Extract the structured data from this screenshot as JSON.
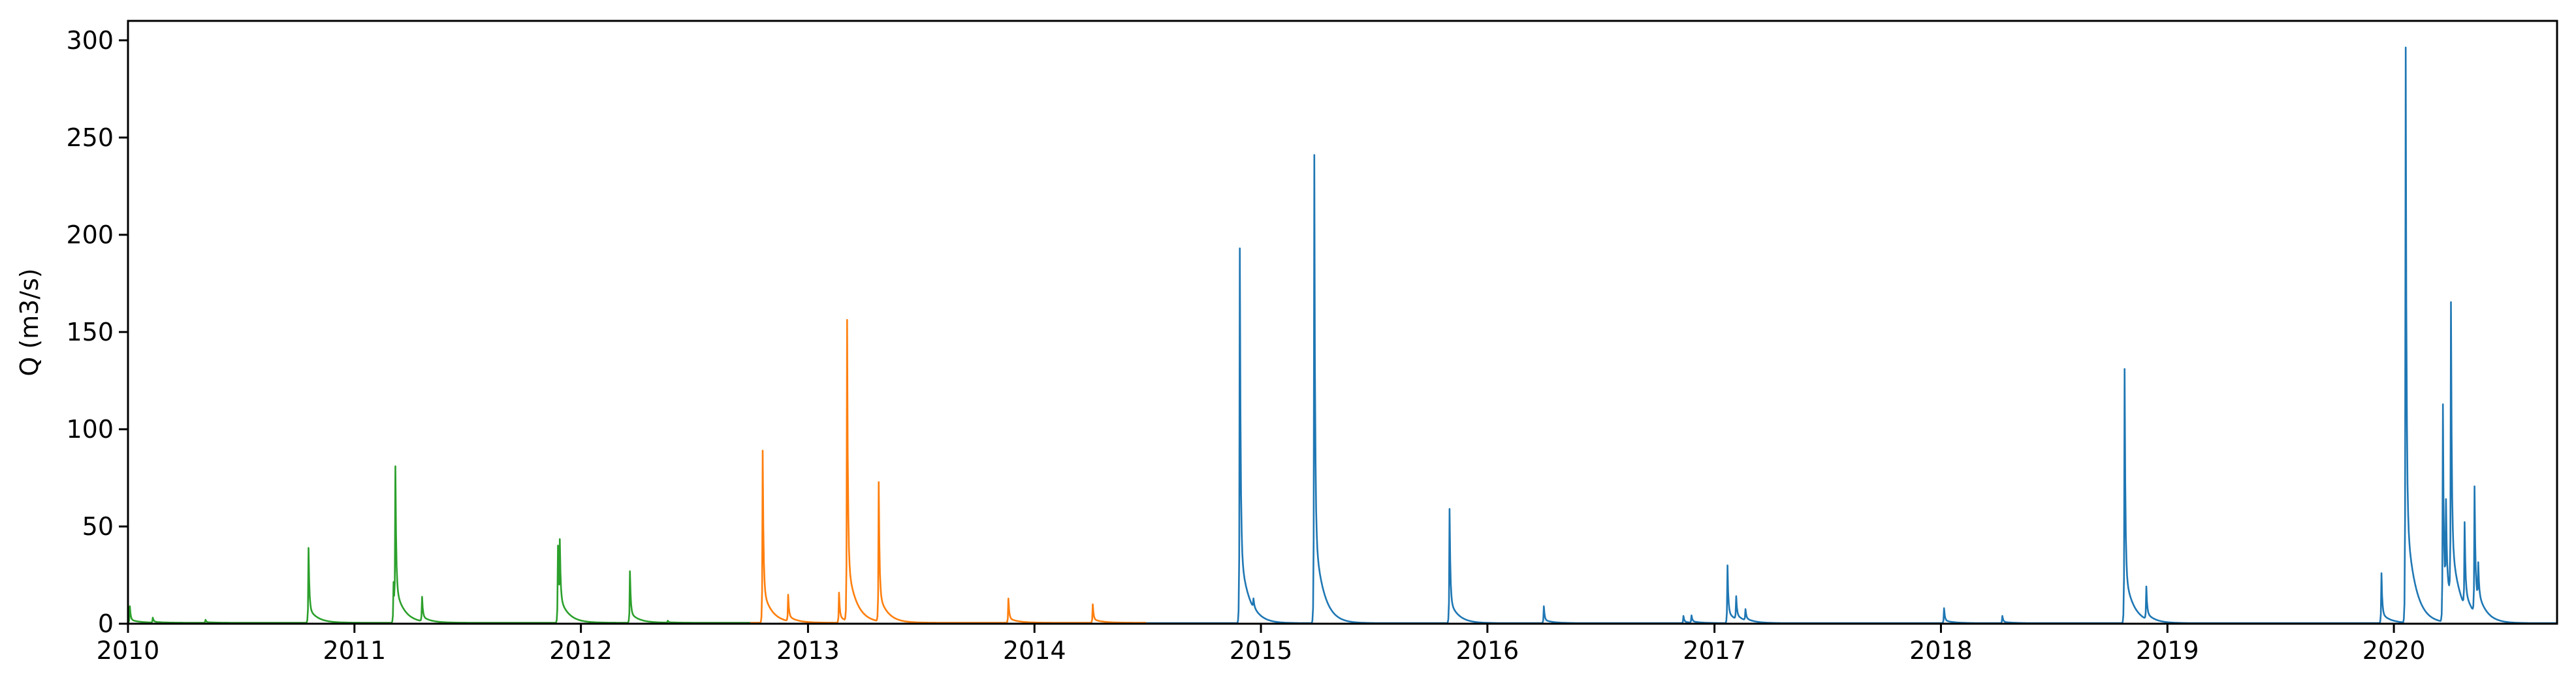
{
  "chart_data": {
    "type": "line",
    "title": "",
    "xlabel": "",
    "ylabel": "Q (m3/s)",
    "xlim": [
      "2010-01-01",
      "2020-09-20"
    ],
    "ylim": [
      0,
      310
    ],
    "grid": false,
    "legend": "none",
    "xticks": [
      "2010",
      "2011",
      "2012",
      "2013",
      "2014",
      "2015",
      "2016",
      "2017",
      "2018",
      "2019",
      "2020"
    ],
    "yticks": [
      0,
      50,
      100,
      150,
      200,
      250,
      300
    ],
    "series": [
      {
        "color": "#2ca02c",
        "start": "2010-01-01",
        "end": "2012-09-30",
        "base": 0.5,
        "peaks": [
          [
            "2010-01-04",
            9
          ],
          [
            "2010-02-10",
            3
          ],
          [
            "2010-05-06",
            2
          ],
          [
            "2010-10-19",
            39
          ],
          [
            "2011-03-05",
            21
          ],
          [
            "2011-03-08",
            76
          ],
          [
            "2011-04-20",
            13
          ],
          [
            "2011-11-25",
            40
          ],
          [
            "2011-11-28",
            34
          ],
          [
            "2012-03-20",
            27
          ],
          [
            "2012-05-20",
            1.5
          ]
        ]
      },
      {
        "color": "#ff7f0e",
        "start": "2012-09-30",
        "end": "2014-06-30",
        "base": 0.5,
        "peaks": [
          [
            "2012-10-20",
            89
          ],
          [
            "2012-11-30",
            14
          ],
          [
            "2013-02-20",
            16
          ],
          [
            "2013-03-05",
            155
          ],
          [
            "2013-04-25",
            72
          ],
          [
            "2013-11-20",
            13
          ],
          [
            "2014-04-05",
            10
          ]
        ]
      },
      {
        "color": "#1f77b4",
        "start": "2014-06-30",
        "end": "2020-09-20",
        "base": 0.3,
        "peaks": [
          [
            "2014-11-28",
            193
          ],
          [
            "2014-12-20",
            5
          ],
          [
            "2015-03-28",
            241
          ],
          [
            "2015-11-01",
            59
          ],
          [
            "2016-04-01",
            9
          ],
          [
            "2016-11-12",
            4
          ],
          [
            "2016-11-25",
            4
          ],
          [
            "2017-01-22",
            30
          ],
          [
            "2017-02-05",
            12
          ],
          [
            "2017-02-20",
            6
          ],
          [
            "2018-01-06",
            8
          ],
          [
            "2018-04-10",
            4
          ],
          [
            "2018-10-24",
            131
          ],
          [
            "2018-11-28",
            17
          ],
          [
            "2019-12-12",
            26
          ],
          [
            "2020-01-20",
            296
          ],
          [
            "2020-03-20",
            112
          ],
          [
            "2020-03-25",
            46
          ],
          [
            "2020-04-02",
            151
          ],
          [
            "2020-04-24",
            43
          ],
          [
            "2020-05-10",
            65
          ],
          [
            "2020-05-16",
            19
          ]
        ]
      }
    ]
  }
}
